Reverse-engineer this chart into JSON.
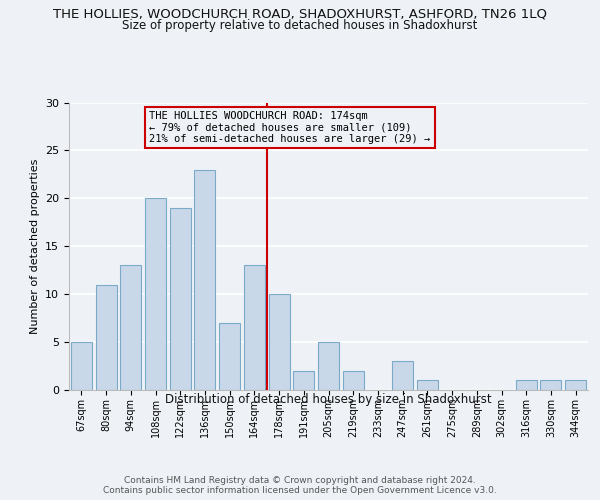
{
  "title": "THE HOLLIES, WOODCHURCH ROAD, SHADOXHURST, ASHFORD, TN26 1LQ",
  "subtitle": "Size of property relative to detached houses in Shadoxhurst",
  "xlabel": "Distribution of detached houses by size in Shadoxhurst",
  "ylabel": "Number of detached properties",
  "bar_labels": [
    "67sqm",
    "80sqm",
    "94sqm",
    "108sqm",
    "122sqm",
    "136sqm",
    "150sqm",
    "164sqm",
    "178sqm",
    "191sqm",
    "205sqm",
    "219sqm",
    "233sqm",
    "247sqm",
    "261sqm",
    "275sqm",
    "289sqm",
    "302sqm",
    "316sqm",
    "330sqm",
    "344sqm"
  ],
  "bar_values": [
    5,
    11,
    13,
    20,
    19,
    23,
    7,
    13,
    10,
    2,
    5,
    2,
    0,
    3,
    1,
    0,
    0,
    0,
    1,
    1,
    1
  ],
  "bar_color": "#c8d8e8",
  "bar_edge_color": "#7aaac8",
  "ylim": [
    0,
    30
  ],
  "yticks": [
    0,
    5,
    10,
    15,
    20,
    25,
    30
  ],
  "marker_index": 8,
  "marker_color": "#cc0000",
  "annotation_line1": "THE HOLLIES WOODCHURCH ROAD: 174sqm",
  "annotation_line2": "← 79% of detached houses are smaller (109)",
  "annotation_line3": "21% of semi-detached houses are larger (29) →",
  "footer_line1": "Contains HM Land Registry data © Crown copyright and database right 2024.",
  "footer_line2": "Contains public sector information licensed under the Open Government Licence v3.0.",
  "background_color": "#eef2f7"
}
